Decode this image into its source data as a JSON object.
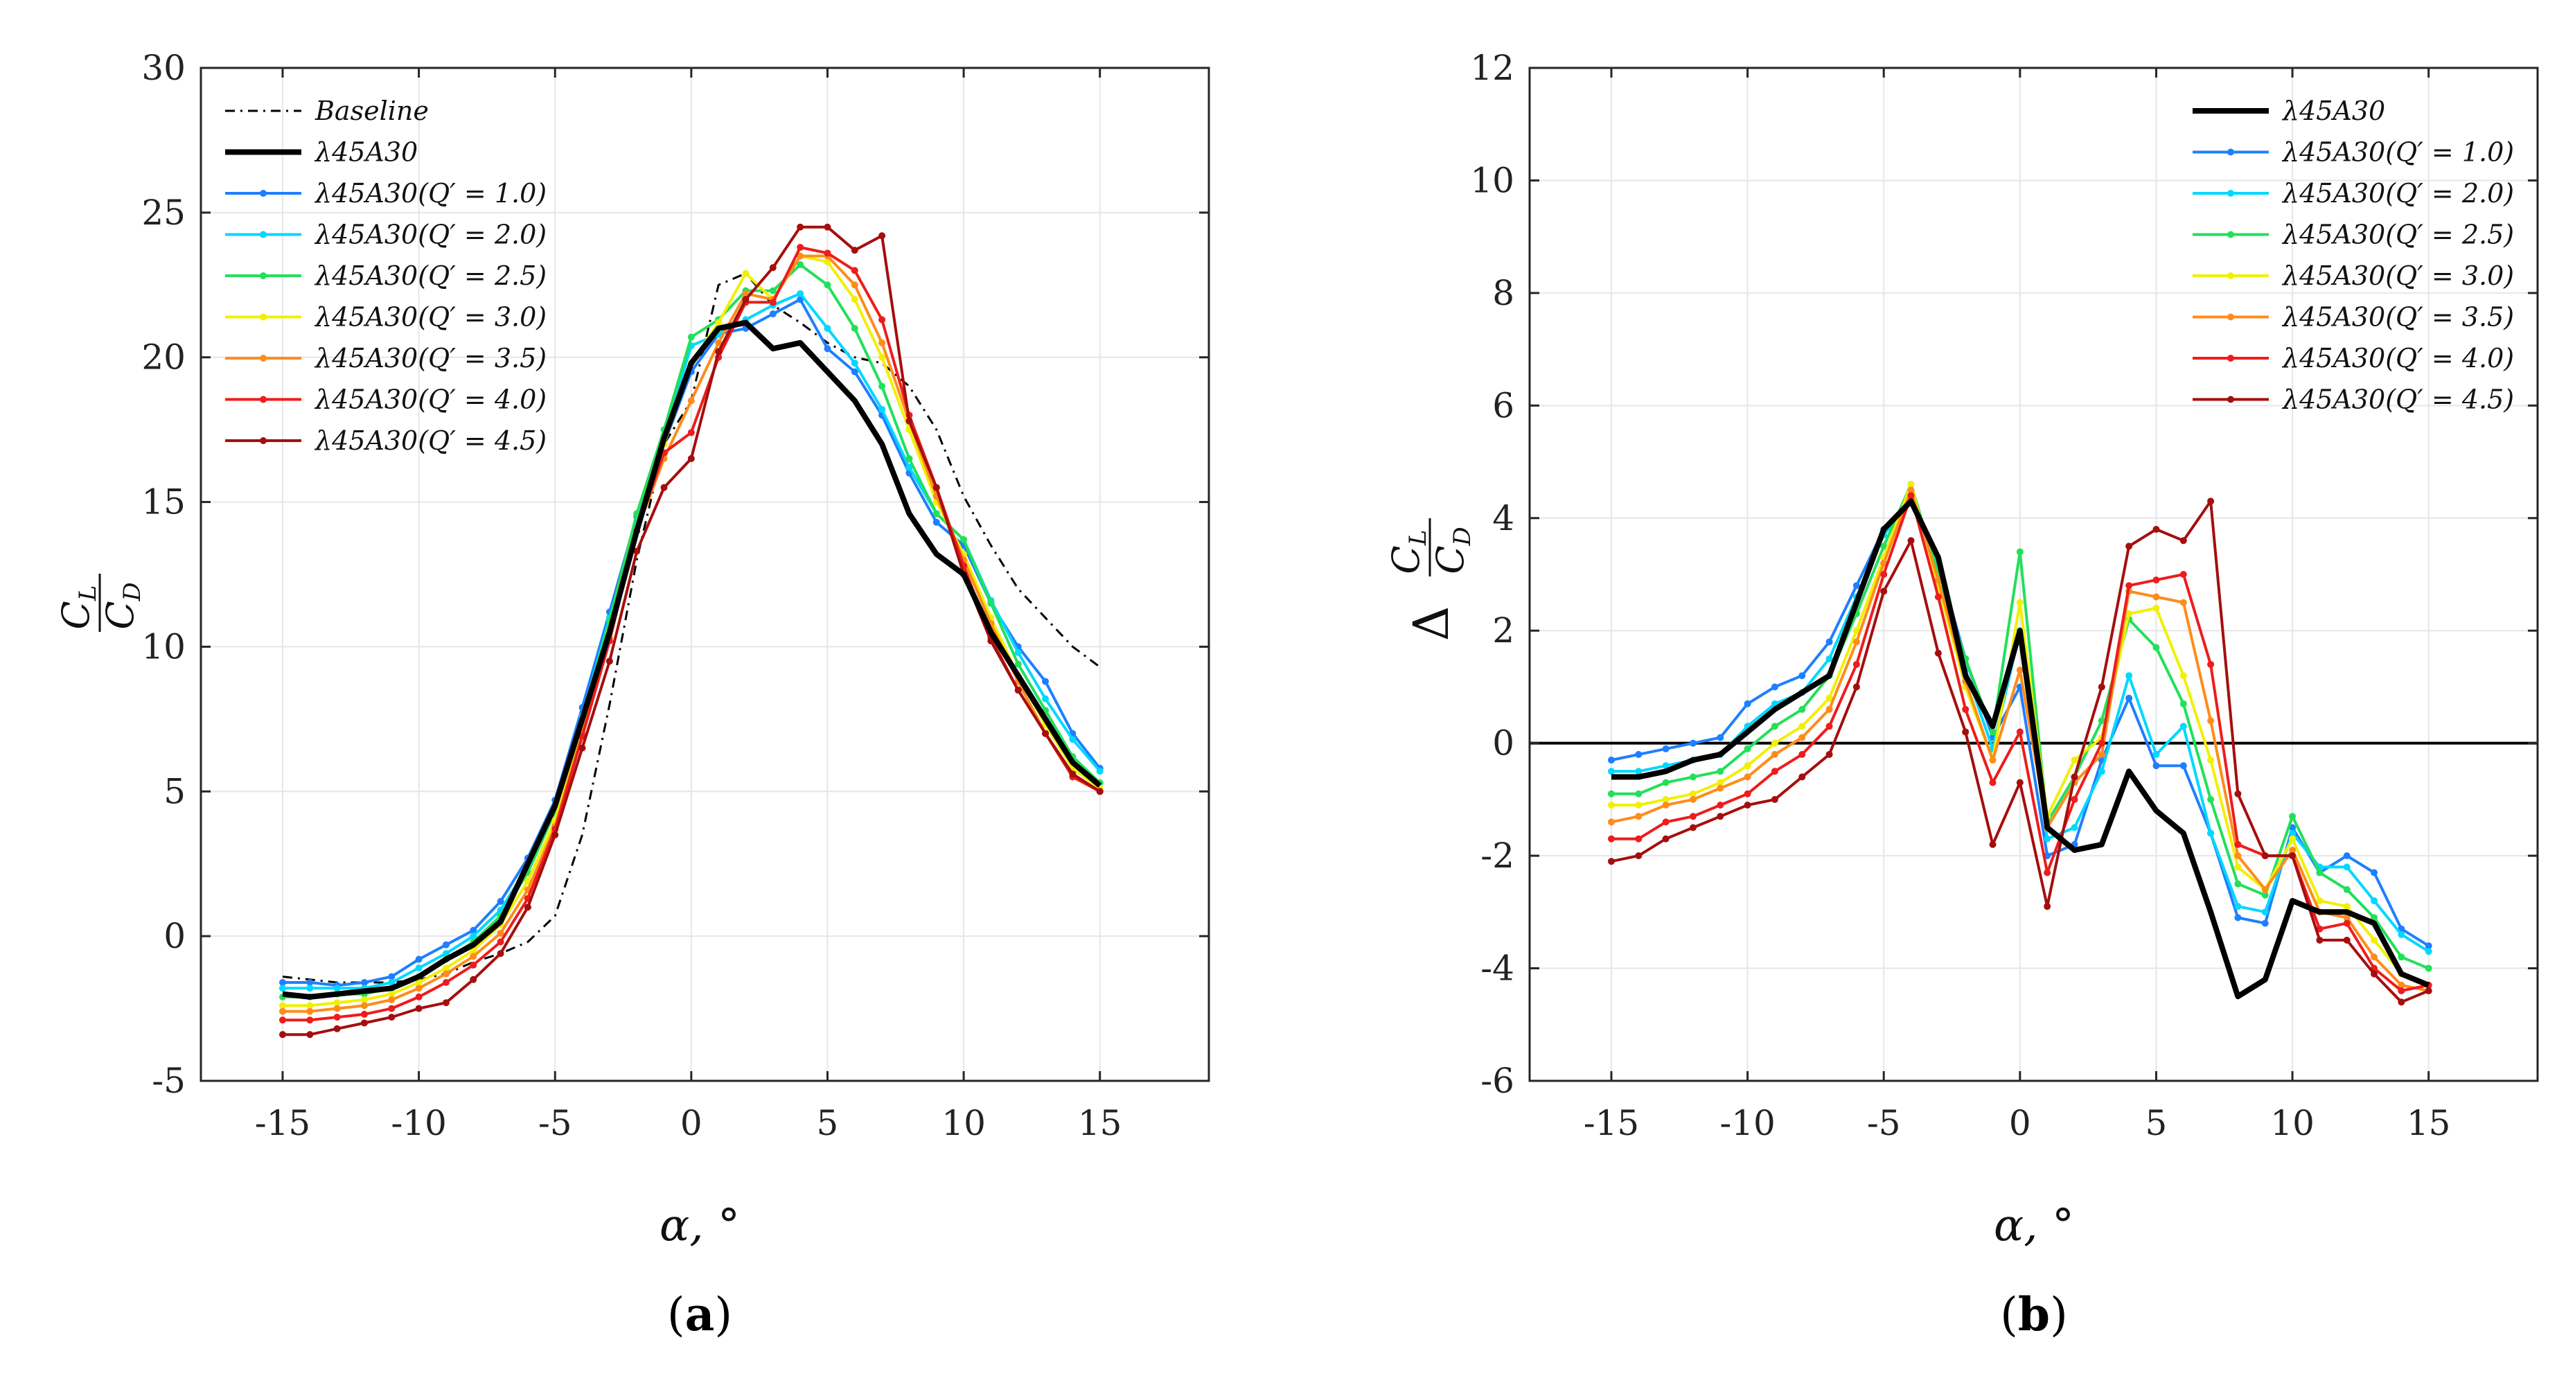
{
  "panels": [
    {
      "id": "a",
      "label": "a",
      "xlabel": "α, °",
      "ylabel_num": "C",
      "ylabel_num_sub": "L",
      "ylabel_den": "C",
      "ylabel_den_sub": "D"
    },
    {
      "id": "b",
      "label": "b",
      "xlabel": "α, °",
      "ylabel_prefix": "Δ",
      "ylabel_num": "C",
      "ylabel_num_sub": "L",
      "ylabel_den": "C",
      "ylabel_den_sub": "D"
    }
  ],
  "chart_data": [
    {
      "type": "line",
      "panel": "a",
      "title": "",
      "xlabel": "α, °",
      "ylabel": "CL/CD",
      "xlim": [
        -18,
        19
      ],
      "ylim": [
        -5,
        30
      ],
      "xticks": [
        -15,
        -10,
        -5,
        0,
        5,
        10,
        15
      ],
      "yticks": [
        -5,
        0,
        5,
        10,
        15,
        20,
        25,
        30
      ],
      "xtick_labels": [
        "-15",
        "-10",
        "-5",
        "0",
        "5",
        "10",
        "15"
      ],
      "ytick_labels": [
        "-5",
        "0",
        "5",
        "10",
        "15",
        "20",
        "25",
        "30"
      ],
      "grid": true,
      "legend_position": "top-left",
      "x": [
        -15,
        -14,
        -13,
        -12,
        -11,
        -10,
        -9,
        -8,
        -7,
        -6,
        -5,
        -4,
        -3,
        -2,
        -1,
        0,
        1,
        2,
        3,
        4,
        5,
        6,
        7,
        8,
        9,
        10,
        11,
        12,
        13,
        14,
        15
      ],
      "series": [
        {
          "name": "Baseline",
          "color": "#000000",
          "dash": "dashdot",
          "width": 3,
          "markers": false,
          "values": [
            -1.4,
            -1.5,
            -1.6,
            -1.6,
            -1.6,
            -1.5,
            -1.3,
            -0.9,
            -0.6,
            -0.2,
            0.7,
            3.5,
            8.0,
            13.0,
            17.0,
            18.5,
            22.5,
            22.9,
            21.8,
            21.2,
            20.5,
            20.0,
            19.8,
            19.0,
            17.5,
            15.2,
            13.5,
            12.0,
            11.0,
            10.0,
            9.3
          ]
        },
        {
          "name": "λ45A30",
          "color": "#000000",
          "dash": "solid",
          "width": 8,
          "markers": false,
          "values": [
            -2.0,
            -2.1,
            -2.0,
            -1.9,
            -1.8,
            -1.4,
            -0.8,
            -0.3,
            0.5,
            2.5,
            4.5,
            7.5,
            10.5,
            14.0,
            17.2,
            19.8,
            21.0,
            21.2,
            20.3,
            20.5,
            19.5,
            18.5,
            17.0,
            14.6,
            13.2,
            12.5,
            10.5,
            9.0,
            7.5,
            6.0,
            5.2
          ]
        },
        {
          "name": "λ45A30(Q′ = 1.0)",
          "color": "#1e7fff",
          "dash": "solid",
          "width": 4,
          "markers": true,
          "values": [
            -1.6,
            -1.6,
            -1.7,
            -1.6,
            -1.4,
            -0.8,
            -0.3,
            0.2,
            1.2,
            2.7,
            4.7,
            7.9,
            11.2,
            14.5,
            17.0,
            19.5,
            20.8,
            21.0,
            21.5,
            22.0,
            20.3,
            19.5,
            18.0,
            16.0,
            14.3,
            13.5,
            11.5,
            10.0,
            8.8,
            7.0,
            5.8
          ]
        },
        {
          "name": "λ45A30(Q′ = 2.0)",
          "color": "#00d8ff",
          "dash": "solid",
          "width": 4,
          "markers": true,
          "values": [
            -1.8,
            -1.8,
            -1.8,
            -1.8,
            -1.6,
            -1.1,
            -0.6,
            0.0,
            0.9,
            2.4,
            4.4,
            7.6,
            11.0,
            14.3,
            17.3,
            20.4,
            20.8,
            21.3,
            21.8,
            22.2,
            21.0,
            19.8,
            18.2,
            16.2,
            14.6,
            13.7,
            11.6,
            9.8,
            8.2,
            6.8,
            5.7
          ]
        },
        {
          "name": "λ45A30(Q′ = 2.5)",
          "color": "#22e05a",
          "dash": "solid",
          "width": 4,
          "markers": true,
          "values": [
            -2.1,
            -2.1,
            -2.0,
            -2.0,
            -1.8,
            -1.4,
            -0.8,
            -0.2,
            0.7,
            2.2,
            4.3,
            7.5,
            10.9,
            14.6,
            17.5,
            20.7,
            21.3,
            22.3,
            22.3,
            23.2,
            22.5,
            21.0,
            19.0,
            16.5,
            14.6,
            13.7,
            11.5,
            9.4,
            7.8,
            6.2,
            5.3
          ]
        },
        {
          "name": "λ45A30(Q′ = 3.0)",
          "color": "#f0f000",
          "dash": "solid",
          "width": 4,
          "markers": true,
          "values": [
            -2.4,
            -2.4,
            -2.3,
            -2.2,
            -2.0,
            -1.6,
            -1.1,
            -0.5,
            0.4,
            1.9,
            4.0,
            7.2,
            10.5,
            14.0,
            17.0,
            19.8,
            21.2,
            22.9,
            22.0,
            23.5,
            23.3,
            22.0,
            20.0,
            17.5,
            15.0,
            13.2,
            11.0,
            9.0,
            7.3,
            5.8,
            5.1
          ]
        },
        {
          "name": "λ45A30(Q′ = 3.5)",
          "color": "#ff8c1a",
          "dash": "solid",
          "width": 4,
          "markers": true,
          "values": [
            -2.6,
            -2.6,
            -2.5,
            -2.4,
            -2.2,
            -1.8,
            -1.3,
            -0.7,
            0.1,
            1.6,
            3.8,
            7.0,
            10.3,
            14.0,
            16.5,
            18.5,
            20.5,
            22.2,
            22.0,
            23.5,
            23.5,
            22.5,
            20.5,
            17.8,
            15.2,
            13.0,
            10.8,
            8.8,
            7.0,
            5.6,
            5.0
          ]
        },
        {
          "name": "λ45A30(Q′ = 4.0)",
          "color": "#ee1c1c",
          "dash": "solid",
          "width": 4,
          "markers": true,
          "values": [
            -2.9,
            -2.9,
            -2.8,
            -2.7,
            -2.5,
            -2.1,
            -1.6,
            -1.0,
            -0.2,
            1.3,
            3.7,
            6.9,
            10.2,
            14.0,
            16.7,
            17.4,
            20.0,
            21.9,
            21.9,
            23.8,
            23.6,
            23.0,
            21.3,
            18.0,
            15.5,
            12.8,
            10.3,
            8.5,
            7.0,
            5.5,
            5.0
          ]
        },
        {
          "name": "λ45A30(Q′ = 4.5)",
          "color": "#a50e0e",
          "dash": "solid",
          "width": 4,
          "markers": true,
          "values": [
            -3.4,
            -3.4,
            -3.2,
            -3.0,
            -2.8,
            -2.5,
            -2.3,
            -1.5,
            -0.6,
            1.0,
            3.5,
            6.5,
            9.5,
            13.3,
            15.5,
            16.5,
            20.2,
            22.0,
            23.1,
            24.5,
            24.5,
            23.7,
            24.2,
            17.8,
            15.5,
            12.5,
            10.2,
            8.5,
            7.0,
            5.6,
            5.0
          ]
        }
      ]
    },
    {
      "type": "line",
      "panel": "b",
      "title": "",
      "xlabel": "α, °",
      "ylabel": "Δ CL/CD",
      "xlim": [
        -18,
        19
      ],
      "ylim": [
        -6,
        12
      ],
      "xticks": [
        -15,
        -10,
        -5,
        0,
        5,
        10,
        15
      ],
      "yticks": [
        -6,
        -4,
        -2,
        0,
        2,
        4,
        6,
        8,
        10,
        12
      ],
      "xtick_labels": [
        "-15",
        "-10",
        "-5",
        "0",
        "5",
        "10",
        "15"
      ],
      "ytick_labels": [
        "-6",
        "-4",
        "-2",
        "0",
        "2",
        "4",
        "6",
        "8",
        "10",
        "12"
      ],
      "grid": true,
      "reference_line_y": 0,
      "legend_position": "top-right",
      "x": [
        -15,
        -14,
        -13,
        -12,
        -11,
        -10,
        -9,
        -8,
        -7,
        -6,
        -5,
        -4,
        -3,
        -2,
        -1,
        0,
        1,
        2,
        3,
        4,
        5,
        6,
        7,
        8,
        9,
        10,
        11,
        12,
        13,
        14,
        15
      ],
      "series": [
        {
          "name": "λ45A30",
          "color": "#000000",
          "width": 8,
          "markers": false,
          "values": [
            -0.6,
            -0.6,
            -0.5,
            -0.3,
            -0.2,
            0.2,
            0.6,
            0.9,
            1.2,
            2.5,
            3.8,
            4.3,
            3.3,
            1.2,
            0.3,
            2.0,
            -1.5,
            -1.9,
            -1.8,
            -0.5,
            -1.2,
            -1.6,
            -3.0,
            -4.5,
            -4.2,
            -2.8,
            -3.0,
            -3.0,
            -3.2,
            -4.1,
            -4.3
          ]
        },
        {
          "name": "λ45A30(Q′ = 1.0)",
          "color": "#1e7fff",
          "width": 4,
          "markers": true,
          "values": [
            -0.3,
            -0.2,
            -0.1,
            0.0,
            0.1,
            0.7,
            1.0,
            1.2,
            1.8,
            2.8,
            3.8,
            4.3,
            3.2,
            1.5,
            0.1,
            1.0,
            -2.0,
            -1.8,
            -0.3,
            0.8,
            -0.4,
            -0.4,
            -1.6,
            -3.1,
            -3.2,
            -1.5,
            -2.3,
            -2.0,
            -2.3,
            -3.3,
            -3.6
          ]
        },
        {
          "name": "λ45A30(Q′ = 2.0)",
          "color": "#00d8ff",
          "width": 4,
          "markers": true,
          "values": [
            -0.5,
            -0.5,
            -0.4,
            -0.3,
            -0.2,
            0.3,
            0.7,
            0.9,
            1.5,
            2.6,
            3.7,
            4.3,
            3.2,
            1.3,
            -0.1,
            2.0,
            -1.7,
            -1.5,
            -0.5,
            1.2,
            -0.2,
            0.3,
            -1.6,
            -2.9,
            -3.0,
            -1.6,
            -2.2,
            -2.2,
            -2.8,
            -3.4,
            -3.7
          ]
        },
        {
          "name": "λ45A30(Q′ = 2.5)",
          "color": "#22e05a",
          "width": 4,
          "markers": true,
          "values": [
            -0.9,
            -0.9,
            -0.7,
            -0.6,
            -0.5,
            -0.1,
            0.3,
            0.6,
            1.2,
            2.3,
            3.5,
            4.6,
            3.0,
            1.5,
            0.2,
            3.4,
            -1.4,
            -0.6,
            0.4,
            2.2,
            1.7,
            0.7,
            -1.0,
            -2.5,
            -2.7,
            -1.3,
            -2.3,
            -2.6,
            -3.1,
            -3.8,
            -4.0
          ]
        },
        {
          "name": "λ45A30(Q′ = 3.0)",
          "color": "#f0f000",
          "width": 4,
          "markers": true,
          "values": [
            -1.1,
            -1.1,
            -1.0,
            -0.9,
            -0.7,
            -0.4,
            0.0,
            0.3,
            0.8,
            2.0,
            3.3,
            4.6,
            2.8,
            1.0,
            -0.3,
            2.5,
            -1.3,
            -0.3,
            0.1,
            2.3,
            2.4,
            1.2,
            -0.3,
            -2.2,
            -2.6,
            -1.7,
            -2.8,
            -2.9,
            -3.5,
            -4.1,
            -4.3
          ]
        },
        {
          "name": "λ45A30(Q′ = 3.5)",
          "color": "#ff8c1a",
          "width": 4,
          "markers": true,
          "values": [
            -1.4,
            -1.3,
            -1.1,
            -1.0,
            -0.8,
            -0.6,
            -0.2,
            0.1,
            0.6,
            1.8,
            3.2,
            4.5,
            2.9,
            1.1,
            -0.3,
            1.3,
            -1.5,
            -0.7,
            -0.2,
            2.7,
            2.6,
            2.5,
            0.4,
            -2.0,
            -2.6,
            -1.9,
            -3.0,
            -3.1,
            -3.8,
            -4.3,
            -4.4
          ]
        },
        {
          "name": "λ45A30(Q′ = 4.0)",
          "color": "#ee1c1c",
          "width": 4,
          "markers": true,
          "values": [
            -1.7,
            -1.7,
            -1.4,
            -1.3,
            -1.1,
            -0.9,
            -0.5,
            -0.2,
            0.3,
            1.4,
            3.0,
            4.4,
            2.6,
            0.6,
            -0.7,
            0.2,
            -2.3,
            -1.0,
            0.0,
            2.8,
            2.9,
            3.0,
            1.4,
            -1.8,
            -2.0,
            -2.0,
            -3.3,
            -3.2,
            -4.0,
            -4.4,
            -4.3
          ]
        },
        {
          "name": "λ45A30(Q′ = 4.5)",
          "color": "#a50e0e",
          "width": 4,
          "markers": true,
          "values": [
            -2.1,
            -2.0,
            -1.7,
            -1.5,
            -1.3,
            -1.1,
            -1.0,
            -0.6,
            -0.2,
            1.0,
            2.7,
            3.6,
            1.6,
            0.2,
            -1.8,
            -0.7,
            -2.9,
            -0.6,
            1.0,
            3.5,
            3.8,
            3.6,
            4.3,
            -0.9,
            -2.0,
            -2.0,
            -3.5,
            -3.5,
            -4.1,
            -4.6,
            -4.4
          ]
        }
      ]
    }
  ]
}
